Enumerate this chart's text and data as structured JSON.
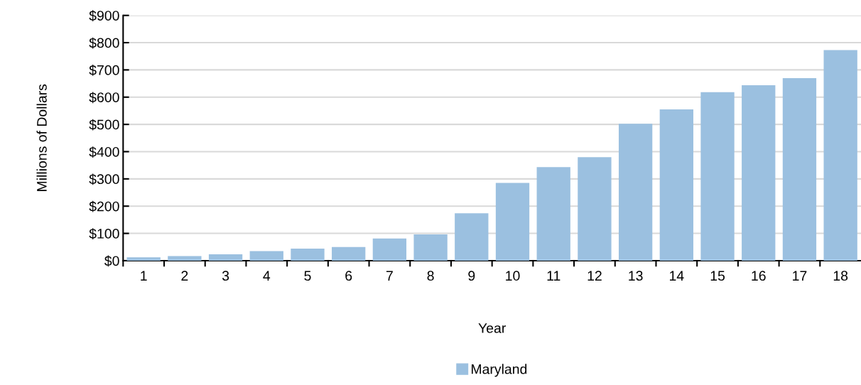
{
  "chart_data": {
    "type": "bar",
    "xlabel": "Year",
    "ylabel": "Millions of Dollars",
    "categories": [
      "1",
      "2",
      "3",
      "4",
      "5",
      "6",
      "7",
      "8",
      "9",
      "10",
      "11",
      "12",
      "13",
      "14",
      "15",
      "16",
      "17",
      "18"
    ],
    "series": [
      {
        "name": "Maryland",
        "color": "#9bc0e0",
        "values": [
          12,
          17,
          23,
          35,
          44,
          50,
          81,
          96,
          174,
          285,
          343,
          380,
          502,
          555,
          618,
          644,
          670,
          773
        ]
      }
    ],
    "ylim": [
      0,
      900
    ],
    "yticks": [
      {
        "value": 0,
        "label": "$0"
      },
      {
        "value": 100,
        "label": "$100"
      },
      {
        "value": 200,
        "label": "$200"
      },
      {
        "value": 300,
        "label": "$300"
      },
      {
        "value": 400,
        "label": "$400"
      },
      {
        "value": 500,
        "label": "$500"
      },
      {
        "value": 600,
        "label": "$600"
      },
      {
        "value": 700,
        "label": "$700"
      },
      {
        "value": 800,
        "label": "$800"
      },
      {
        "value": 900,
        "label": "$900"
      }
    ],
    "grid": "y",
    "legend": "bottom"
  }
}
